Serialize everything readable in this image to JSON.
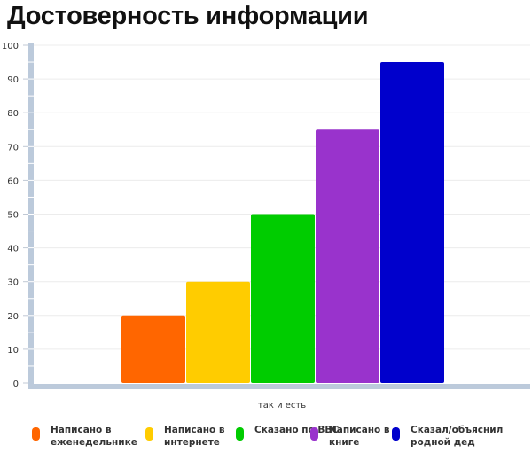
{
  "title": "Достоверность информации",
  "chart_data": {
    "type": "bar",
    "title": "Достоверность информации",
    "xlabel": "так и есть",
    "ylabel": "",
    "ylim": [
      0,
      100
    ],
    "yticks": [
      "0",
      "10",
      "20",
      "30",
      "40",
      "50",
      "60",
      "70",
      "80",
      "90",
      "100"
    ],
    "grid": true,
    "legend_position": "bottom",
    "series": [
      {
        "name": "Написано в еженедельнике",
        "value": 20,
        "color": "#ff6600"
      },
      {
        "name": "Написано в интернете",
        "value": 30,
        "color": "#ffcc00"
      },
      {
        "name": "Сказано по BBC",
        "value": 50,
        "color": "#00cc00"
      },
      {
        "name": "Написано в книге",
        "value": 75,
        "color": "#9933cc"
      },
      {
        "name": "Сказал/объяснил родной дед",
        "value": 95,
        "color": "#0000cc"
      }
    ]
  }
}
